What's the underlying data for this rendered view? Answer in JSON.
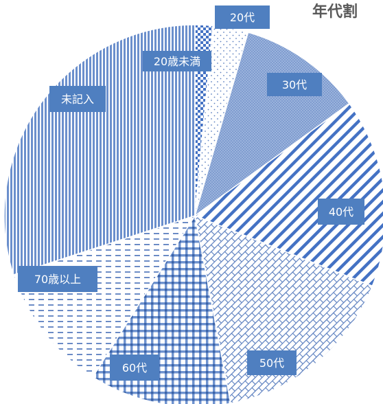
{
  "chart_data": {
    "type": "pie",
    "title": "年代割",
    "categories": [
      "20歳未満",
      "20代",
      "30代",
      "40代",
      "50代",
      "60代",
      "70歳以上",
      "未記入"
    ],
    "values": [
      1.5,
      3.0,
      10.5,
      16.0,
      16.0,
      12.0,
      11.0,
      30.0
    ],
    "start_angle_deg": 0,
    "direction": "clockwise",
    "colors": {
      "accent": "#4472c4",
      "label_fill": "#4f7fc0",
      "slice_border": "#ffffff",
      "title": "#595959"
    },
    "slice_patterns": [
      "checker",
      "dots",
      "light-grid-fill",
      "diagonal-stripes",
      "diagonal-brick",
      "plaid",
      "dashed-horizontal",
      "vertical-stripes"
    ]
  }
}
